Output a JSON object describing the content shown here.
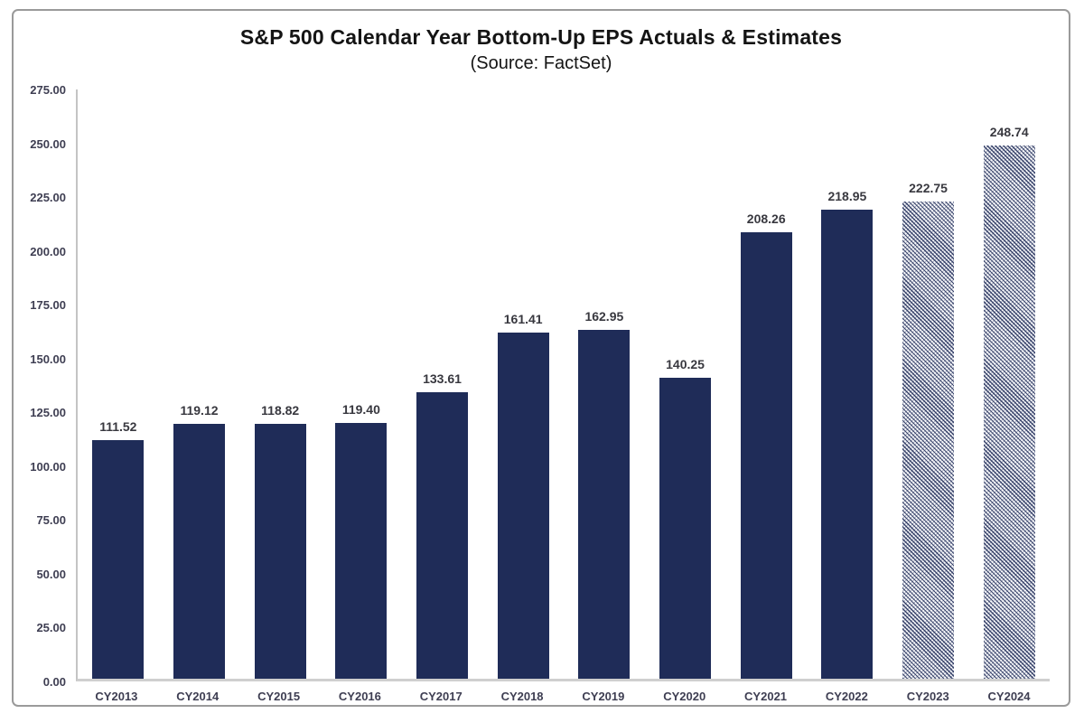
{
  "chart": {
    "title": "S&P 500 Calendar Year Bottom-Up EPS Actuals & Estimates",
    "subtitle": "(Source: FactSet)"
  },
  "chart_data": {
    "type": "bar",
    "title": "S&P 500 Calendar Year Bottom-Up EPS Actuals & Estimates",
    "subtitle": "(Source: FactSet)",
    "categories": [
      "CY2013",
      "CY2014",
      "CY2015",
      "CY2016",
      "CY2017",
      "CY2018",
      "CY2019",
      "CY2020",
      "CY2021",
      "CY2022",
      "CY2023",
      "CY2024"
    ],
    "values": [
      111.52,
      119.12,
      118.82,
      119.4,
      133.61,
      161.41,
      162.95,
      140.25,
      208.26,
      218.95,
      222.75,
      248.74
    ],
    "bar_styles": [
      "solid",
      "solid",
      "solid",
      "solid",
      "solid",
      "solid",
      "solid",
      "solid",
      "solid",
      "solid",
      "hatched",
      "hatched"
    ],
    "style_meaning": {
      "solid": "actual",
      "hatched": "estimate"
    },
    "data_label_decimals": 2,
    "xlabel": "",
    "ylabel": "",
    "ylim": [
      0,
      275
    ],
    "ytick_step": 25,
    "ytick_decimals": 2,
    "grid": false,
    "legend": false,
    "colors": {
      "solid_bar": "#1f2c58",
      "hatch_line": "#202c58",
      "axis_line": "#c4c4c4",
      "tick_label": "#3e3e52",
      "data_label": "#38383f",
      "title": "#141414",
      "frame_border": "#9a9a9a",
      "background": "#ffffff"
    }
  }
}
